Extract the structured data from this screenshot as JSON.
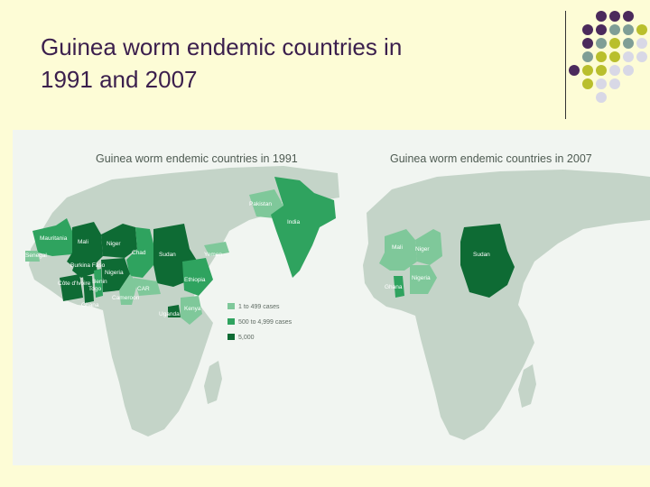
{
  "slide": {
    "title_line1": "Guinea worm endemic countries in",
    "title_line2": "1991 and 2007"
  },
  "colors": {
    "background": "#fdfcd6",
    "title": "#3b1f4d",
    "dot_purple": "#4b2a5c",
    "dot_teal": "#7f9e96",
    "dot_olive": "#b9bf2c",
    "dot_light": "#d8d8e6",
    "ocean": "#f1f5f1",
    "land": "#c4d4c8",
    "light_green": "#7fc89a",
    "mid_green": "#2fa35f",
    "dark_green": "#0e6b34"
  },
  "map_1991": {
    "title": "Guinea worm endemic countries in 1991",
    "countries": {
      "mauritania": "Mauritania",
      "senegal": "Senegal",
      "mali": "Mali",
      "niger": "Niger",
      "chad": "Chad",
      "sudan": "Sudan",
      "yemen": "Yemen",
      "pakistan": "Pakistan",
      "india": "India",
      "burkina_faso": "Burkina Faso",
      "benin": "Benin",
      "togo": "Togo",
      "nigeria": "Nigeria",
      "cote_divoire": "Côte d'Ivoire",
      "ghana": "Ghana",
      "car": "CAR",
      "cameroon": "Cameroon",
      "ethiopia": "Ethiopia",
      "uganda": "Uganda",
      "kenya": "Kenya"
    },
    "legend": [
      {
        "label": "1 to 499 cases",
        "color": "#7fc89a"
      },
      {
        "label": "500 to 4,999 cases",
        "color": "#2fa35f"
      },
      {
        "label": "5,000",
        "color": "#0e6b34"
      }
    ]
  },
  "map_2007": {
    "title": "Guinea worm endemic countries in 2007",
    "countries": {
      "mali": "Mali",
      "niger": "Niger",
      "ghana": "Ghana",
      "nigeria": "Nigeria",
      "sudan": "Sudan"
    }
  }
}
